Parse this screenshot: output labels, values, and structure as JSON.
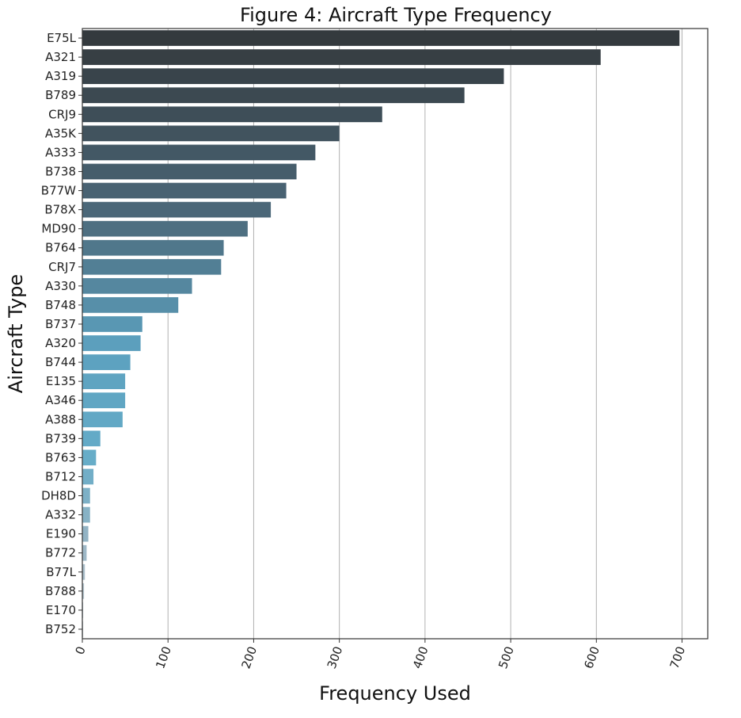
{
  "chart_data": {
    "type": "bar",
    "orientation": "horizontal",
    "title": "Figure 4: Aircraft Type Frequency",
    "xlabel": "Frequency Used",
    "ylabel": "Aircraft Type",
    "xlim": [
      0,
      730
    ],
    "xticks": [
      0,
      100,
      200,
      300,
      400,
      500,
      600,
      700
    ],
    "grid": "vertical",
    "categories": [
      "E75L",
      "A321",
      "A319",
      "B789",
      "CRJ9",
      "A35K",
      "A333",
      "B738",
      "B77W",
      "B78X",
      "MD90",
      "B764",
      "CRJ7",
      "A330",
      "B748",
      "B737",
      "A320",
      "B744",
      "E135",
      "A346",
      "A388",
      "B739",
      "B763",
      "B712",
      "DH8D",
      "A332",
      "E190",
      "B772",
      "B77L",
      "B788",
      "E170",
      "B752"
    ],
    "values": [
      697,
      605,
      492,
      446,
      350,
      300,
      272,
      250,
      238,
      220,
      193,
      165,
      162,
      128,
      112,
      70,
      68,
      56,
      50,
      50,
      47,
      21,
      16,
      13,
      9,
      9,
      7,
      5,
      3,
      2,
      1,
      1
    ],
    "palette": "dark-slate to light-blue gradient"
  }
}
